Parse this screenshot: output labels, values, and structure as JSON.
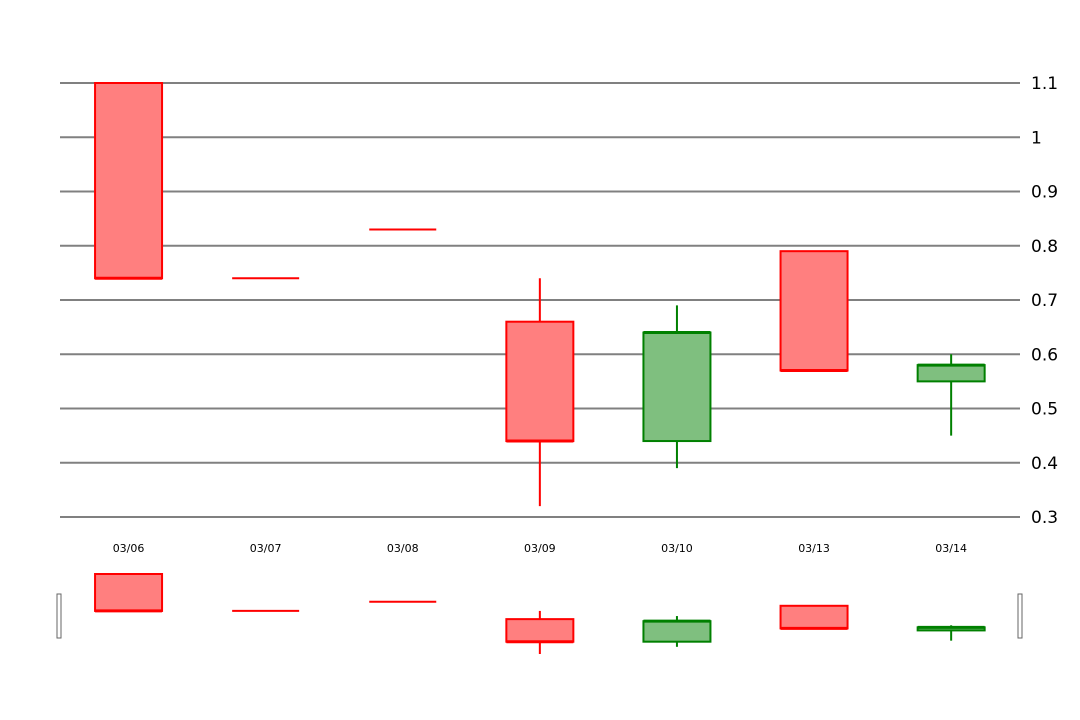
{
  "chart_data": {
    "type": "candlestick",
    "title": "",
    "xlabel": "",
    "ylabel": "",
    "ylim": [
      0.3,
      1.1
    ],
    "y_ticks": [
      "0.3",
      "0.4",
      "0.5",
      "0.6",
      "0.7",
      "0.8",
      "0.9",
      "1",
      "1.1"
    ],
    "grid": true,
    "y_axis_side": "right",
    "colors": {
      "down_fill": "#ff7f7f",
      "down_stroke": "#ff0000",
      "up_fill": "#7fbf7f",
      "up_stroke": "#008000",
      "grid": "#808080"
    },
    "candles": [
      {
        "date": "03/06",
        "open": 1.1,
        "close": 0.74,
        "high": 1.1,
        "low": 0.74
      },
      {
        "date": "03/07",
        "open": 0.74,
        "close": 0.74,
        "high": 0.74,
        "low": 0.74
      },
      {
        "date": "03/08",
        "open": 0.83,
        "close": 0.83,
        "high": 0.83,
        "low": 0.83
      },
      {
        "date": "03/09",
        "open": 0.66,
        "close": 0.44,
        "high": 0.74,
        "low": 0.32
      },
      {
        "date": "03/10",
        "open": 0.44,
        "close": 0.64,
        "high": 0.69,
        "low": 0.39
      },
      {
        "date": "03/13",
        "open": 0.79,
        "close": 0.57,
        "high": 0.79,
        "low": 0.57
      },
      {
        "date": "03/14",
        "open": 0.55,
        "close": 0.58,
        "high": 0.6,
        "low": 0.45
      }
    ],
    "navigator": {
      "ylim": [
        0.32,
        1.1
      ]
    }
  }
}
